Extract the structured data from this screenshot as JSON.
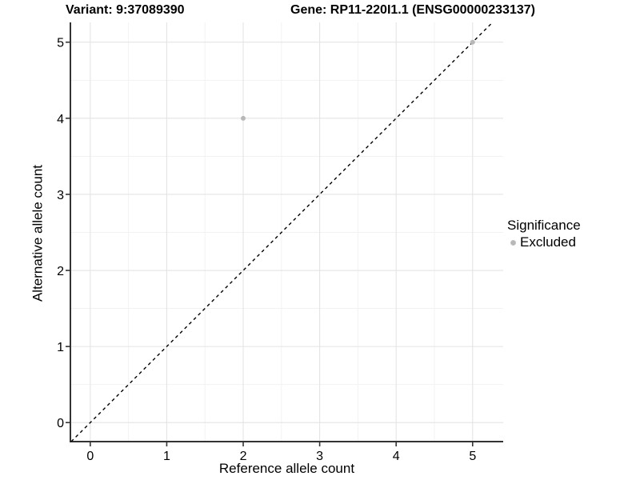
{
  "chart_data": {
    "type": "scatter",
    "title_variant": "Variant: 9:37089390",
    "title_gene": "Gene: RP11-220I1.1 (ENSG00000233137)",
    "xlabel": "Reference allele count",
    "ylabel": "Alternative allele count",
    "xlim": [
      -0.26,
      5.4
    ],
    "ylim": [
      -0.25,
      5.26
    ],
    "x_ticks": [
      0,
      1,
      2,
      3,
      4,
      5
    ],
    "y_ticks": [
      0,
      1,
      2,
      3,
      4,
      5
    ],
    "minor_grid_step": 1,
    "minor_grid_offset": 0.5,
    "grid": true,
    "identity_line": {
      "type": "dashed",
      "color": "#000000",
      "equation": "y = x"
    },
    "series": [
      {
        "name": "Excluded",
        "color": "#b8b8b8",
        "points": [
          {
            "x": 2,
            "y": 4
          },
          {
            "x": 5,
            "y": 5
          }
        ]
      }
    ],
    "legend": {
      "title": "Significance",
      "position": "right",
      "entries": [
        {
          "label": "Excluded",
          "color": "#b8b8b8",
          "marker": "circle"
        }
      ]
    }
  },
  "colors": {
    "background": "#ffffff",
    "grid_major": "#e4e4e4",
    "grid_minor": "#f1f1f1",
    "axis_line": "#333333",
    "tick_mark": "#333333",
    "text": "#000000"
  }
}
